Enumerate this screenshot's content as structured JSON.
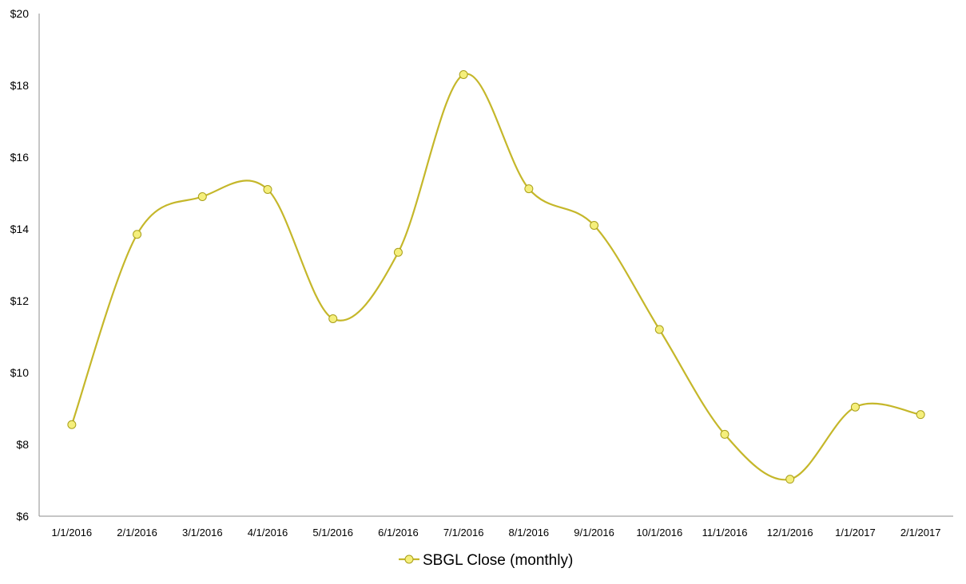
{
  "chart_data": {
    "type": "line",
    "title": "",
    "xlabel": "",
    "ylabel": "",
    "categories": [
      "1/1/2016",
      "2/1/2016",
      "3/1/2016",
      "4/1/2016",
      "5/1/2016",
      "6/1/2016",
      "7/1/2016",
      "8/1/2016",
      "9/1/2016",
      "10/1/2016",
      "11/1/2016",
      "12/1/2016",
      "1/1/2017",
      "2/1/2017"
    ],
    "series": [
      {
        "name": "SBGL Close (monthly)",
        "values": [
          8.55,
          13.85,
          14.9,
          15.1,
          11.5,
          13.35,
          18.3,
          15.12,
          14.1,
          11.2,
          8.28,
          7.03,
          9.04,
          8.83
        ],
        "color": "#c5b72a",
        "marker_fill": "#f5ef7c",
        "marker_stroke": "#a99f1a",
        "smooth": true
      }
    ],
    "ylim": [
      6,
      20
    ],
    "y_ticks": [
      6,
      8,
      10,
      12,
      14,
      16,
      18,
      20
    ],
    "y_tick_format": "$",
    "grid": false,
    "legend": {
      "position": "bottom"
    }
  }
}
